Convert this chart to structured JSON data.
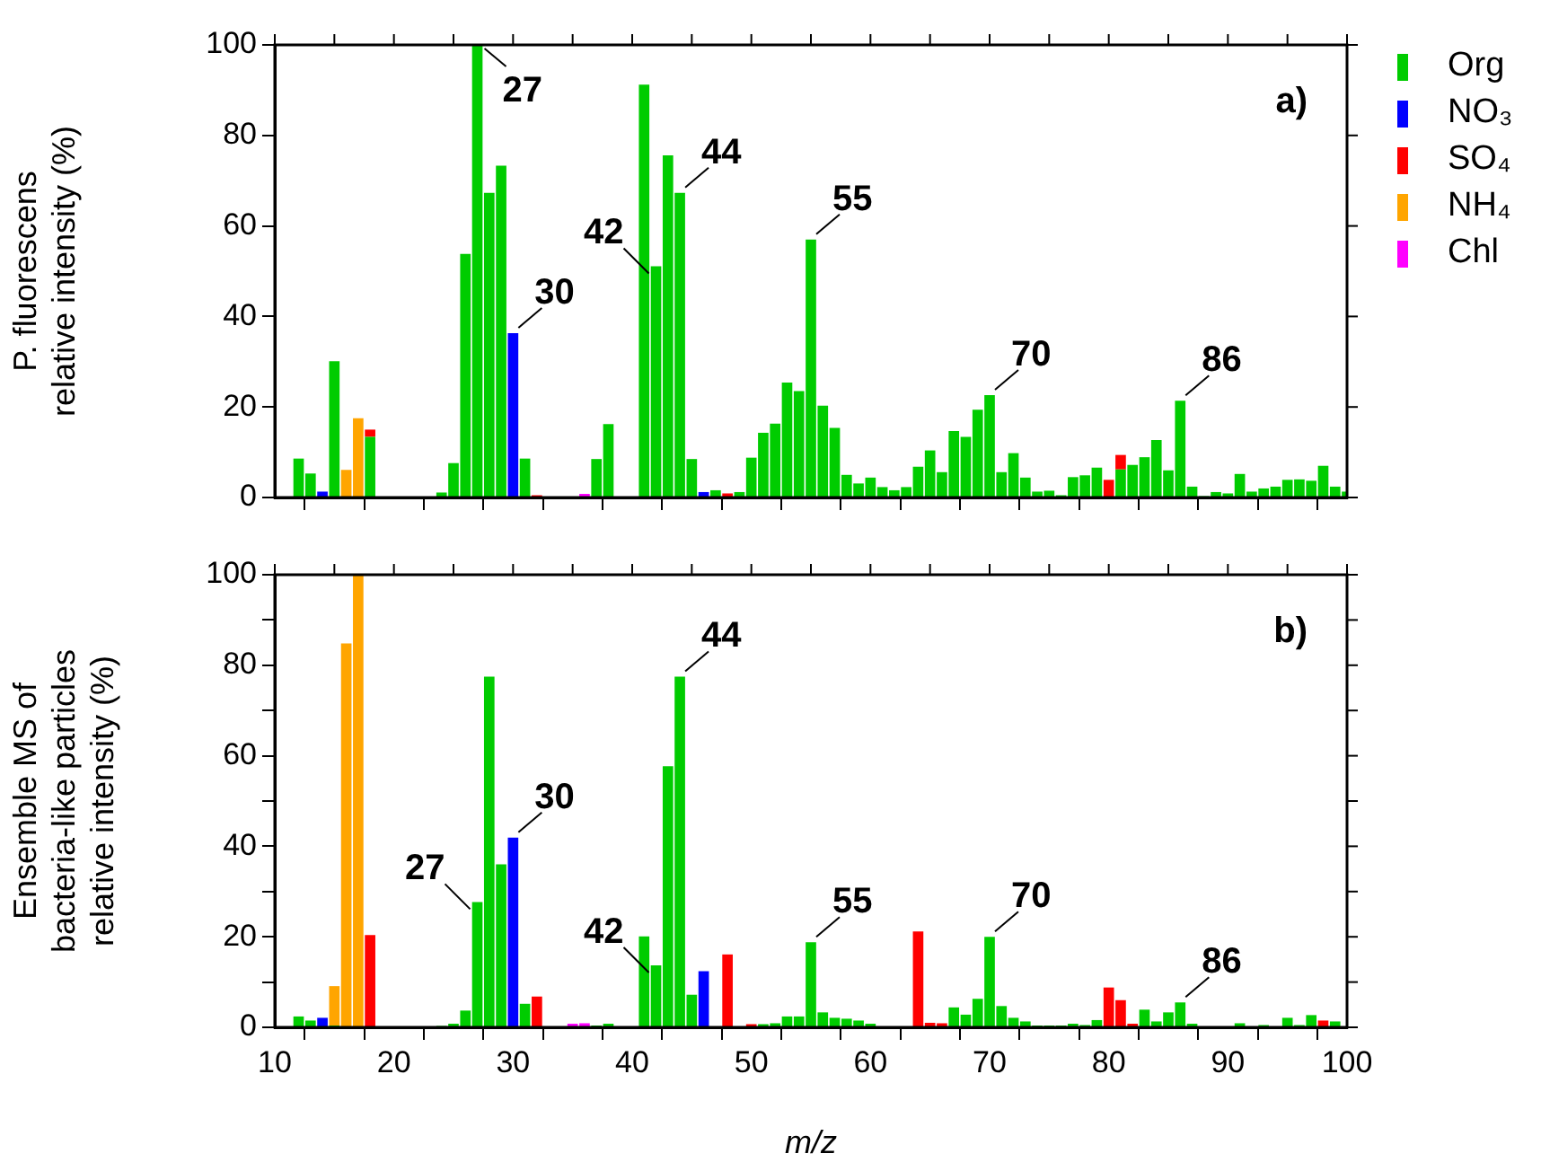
{
  "chart_data": [
    {
      "type": "bar",
      "stacked": true,
      "ylabel": "P. fluorescens\nrelative intensity (%)",
      "xlim": [
        10,
        100
      ],
      "xticks": [
        10,
        {
          "value": 15,
          "label": null
        },
        20,
        {
          "value": 25,
          "label": null
        },
        30,
        {
          "value": 35,
          "label": null
        },
        40,
        {
          "value": 45,
          "label": null
        },
        50,
        {
          "value": 55,
          "label": null
        },
        60,
        {
          "value": 65,
          "label": null
        },
        70,
        {
          "value": 75,
          "label": null
        },
        80,
        {
          "value": 85,
          "label": null
        },
        90,
        {
          "value": 95,
          "label": null
        },
        100
      ],
      "ylim": [
        0,
        100
      ],
      "yticks": [
        0,
        20,
        40,
        60,
        80,
        100
      ],
      "tick_labels": "y",
      "legend": "right",
      "grid": false,
      "x": [
        12,
        13,
        14,
        15,
        16,
        17,
        18,
        19,
        20,
        21,
        22,
        23,
        24,
        25,
        26,
        27,
        28,
        29,
        30,
        31,
        32,
        33,
        34,
        35,
        36,
        37,
        38,
        39,
        40,
        41,
        42,
        43,
        44,
        45,
        46,
        47,
        48,
        49,
        50,
        51,
        52,
        53,
        54,
        55,
        56,
        57,
        58,
        59,
        60,
        61,
        62,
        63,
        64,
        65,
        66,
        67,
        68,
        69,
        70,
        71,
        72,
        73,
        74,
        75,
        76,
        77,
        78,
        79,
        80,
        81,
        82,
        83,
        84,
        85,
        86,
        87,
        88,
        89,
        90,
        91,
        92,
        93,
        94,
        95,
        96,
        97,
        98,
        99,
        100
      ],
      "series": [
        {
          "name": "Org",
          "color": "#00cc00",
          "values": [
            8.6,
            5.3,
            null,
            30.1,
            null,
            null,
            13.4,
            null,
            null,
            null,
            null,
            null,
            1.1,
            7.6,
            53.8,
            100,
            67.3,
            73.3,
            null,
            8.6,
            null,
            null,
            null,
            null,
            null,
            8.5,
            16.2,
            null,
            null,
            91.2,
            51.1,
            75.6,
            67.3,
            8.5,
            null,
            1.6,
            null,
            1.2,
            8.8,
            14.3,
            16.3,
            25.4,
            23.5,
            57,
            20.3,
            15.4,
            5.0,
            3.1,
            4.4,
            2.3,
            1.6,
            2.3,
            6.8,
            10.4,
            5.6,
            14.7,
            13.4,
            19.4,
            22.6,
            5.6,
            9.8,
            4.4,
            1.3,
            1.5,
            0.5,
            4.5,
            4.9,
            6.6,
            null,
            6.2,
            7.2,
            8.9,
            12.7,
            6.0,
            21.4,
            2.4,
            0.3,
            1.2,
            0.9,
            5.2,
            1.3,
            2.0,
            2.4,
            3.9,
            4.0,
            3.7,
            7.0,
            2.4,
            1.3
          ]
        },
        {
          "name": "NO₃",
          "color": "#0000ff",
          "values": [
            null,
            null,
            1.3,
            null,
            null,
            null,
            null,
            null,
            null,
            null,
            null,
            null,
            null,
            null,
            null,
            null,
            null,
            null,
            36.3,
            null,
            null,
            null,
            null,
            null,
            null,
            null,
            null,
            null,
            null,
            null,
            null,
            null,
            null,
            null,
            1.2,
            null,
            null,
            null,
            null,
            null,
            null,
            null,
            null,
            null,
            null,
            null,
            null,
            null,
            null,
            null,
            null,
            null,
            null,
            null,
            null,
            null,
            null,
            null,
            null,
            null,
            null,
            null,
            null,
            null,
            null,
            null,
            null,
            null,
            null,
            null,
            null,
            null,
            null,
            null,
            null,
            null,
            null,
            null,
            null,
            null,
            null,
            null,
            null,
            null,
            null,
            null,
            null,
            null,
            null
          ]
        },
        {
          "name": "SO₄",
          "color": "#ff0000",
          "values": [
            null,
            null,
            null,
            null,
            null,
            null,
            1.6,
            null,
            null,
            null,
            null,
            null,
            null,
            null,
            null,
            null,
            null,
            null,
            null,
            null,
            0.5,
            null,
            null,
            null,
            null,
            null,
            null,
            null,
            null,
            null,
            null,
            null,
            null,
            null,
            null,
            null,
            0.9,
            null,
            null,
            null,
            null,
            null,
            null,
            null,
            null,
            null,
            null,
            null,
            null,
            null,
            null,
            null,
            null,
            null,
            null,
            null,
            null,
            null,
            null,
            null,
            null,
            null,
            null,
            null,
            null,
            null,
            null,
            null,
            3.9,
            3.2,
            null,
            null,
            null,
            null,
            null,
            null,
            null,
            null,
            null,
            null,
            null,
            null,
            null,
            null,
            null,
            null,
            null,
            null,
            null
          ]
        },
        {
          "name": "NH₄",
          "color": "#ffa500",
          "values": [
            null,
            null,
            null,
            null,
            6.1,
            17.5,
            null,
            null,
            null,
            null,
            null,
            null,
            null,
            null,
            null,
            null,
            null,
            null,
            null,
            null,
            null,
            null,
            null,
            null,
            null,
            null,
            null,
            null,
            null,
            null,
            null,
            null,
            null,
            null,
            null,
            null,
            null,
            null,
            null,
            null,
            null,
            null,
            null,
            null,
            null,
            null,
            null,
            null,
            null,
            null,
            null,
            null,
            null,
            null,
            null,
            null,
            null,
            null,
            null,
            null,
            null,
            null,
            null,
            null,
            null,
            null,
            null,
            null,
            null,
            null,
            null,
            null,
            null,
            null,
            null,
            null,
            null,
            null,
            null,
            null,
            null,
            null,
            null,
            null,
            null,
            null,
            null,
            null,
            null
          ]
        },
        {
          "name": "Chl",
          "color": "#ff00ff",
          "values": [
            null,
            null,
            null,
            null,
            null,
            null,
            null,
            null,
            null,
            null,
            null,
            null,
            null,
            null,
            null,
            null,
            null,
            null,
            null,
            null,
            null,
            null,
            null,
            null,
            0.8,
            null,
            null,
            null,
            null,
            null,
            null,
            null,
            null,
            null,
            null,
            null,
            null,
            null,
            null,
            null,
            null,
            null,
            null,
            null,
            null,
            null,
            null,
            null,
            null,
            null,
            null,
            null,
            null,
            null,
            null,
            null,
            null,
            null,
            null,
            null,
            null,
            null,
            null,
            null,
            null,
            null,
            null,
            null,
            null,
            null,
            null,
            null,
            null,
            null,
            null,
            null,
            null,
            null,
            null,
            null,
            null,
            null,
            null,
            null,
            null,
            null,
            null,
            null,
            null
          ]
        }
      ],
      "annotations": [
        "a)",
        {
          "text": "27",
          "x": 27,
          "y": 100
        },
        {
          "text": "30",
          "x": 30,
          "y": 36.3
        },
        {
          "text": "42",
          "x": 42,
          "y": 51.1
        },
        {
          "text": "44",
          "x": 44,
          "y": 67.3
        },
        {
          "text": "55",
          "x": 55,
          "y": 57
        },
        {
          "text": "70",
          "x": 70,
          "y": 22.6
        },
        {
          "text": "86",
          "x": 86,
          "y": 21.4
        }
      ]
    },
    {
      "type": "bar",
      "stacked": true,
      "xlabel": "m/z",
      "ylabel": "Ensemble MS of\nbacteria-like particles\nrelative intensity (%)",
      "xlim": [
        10,
        100
      ],
      "xticks": [
        10,
        {
          "value": 15,
          "label": null
        },
        20,
        {
          "value": 25,
          "label": null
        },
        30,
        {
          "value": 35,
          "label": null
        },
        40,
        {
          "value": 45,
          "label": null
        },
        50,
        {
          "value": 55,
          "label": null
        },
        60,
        {
          "value": 65,
          "label": null
        },
        70,
        {
          "value": 75,
          "label": null
        },
        80,
        {
          "value": 85,
          "label": null
        },
        90,
        {
          "value": 95,
          "label": null
        },
        100
      ],
      "ylim": [
        0,
        100
      ],
      "yticks": [
        0,
        {
          "value": 10,
          "label": null
        },
        20,
        {
          "value": 30,
          "label": null
        },
        40,
        {
          "value": 50,
          "label": null
        },
        60,
        {
          "value": 70,
          "label": null
        },
        80,
        {
          "value": 90,
          "label": null
        },
        100
      ],
      "grid": false,
      "x": [
        12,
        13,
        14,
        15,
        16,
        17,
        18,
        19,
        20,
        21,
        22,
        23,
        24,
        25,
        26,
        27,
        28,
        29,
        30,
        31,
        32,
        33,
        34,
        35,
        36,
        37,
        38,
        39,
        40,
        41,
        42,
        43,
        44,
        45,
        46,
        47,
        48,
        49,
        50,
        51,
        52,
        53,
        54,
        55,
        56,
        57,
        58,
        59,
        60,
        61,
        62,
        63,
        64,
        65,
        66,
        67,
        68,
        69,
        70,
        71,
        72,
        73,
        74,
        75,
        76,
        77,
        78,
        79,
        80,
        81,
        82,
        83,
        84,
        85,
        86,
        87,
        88,
        89,
        90,
        91,
        92,
        93,
        94,
        95,
        96,
        97,
        98,
        99
      ],
      "series": [
        {
          "color": "#00cc00",
          "values": [
            2.4,
            1.5,
            null,
            0.4,
            null,
            null,
            null,
            null,
            null,
            null,
            null,
            null,
            0.3,
            0.8,
            3.7,
            27.7,
            77.5,
            36,
            null,
            5.2,
            null,
            null,
            null,
            null,
            null,
            0.4,
            0.8,
            null,
            null,
            20.1,
            13.7,
            57.7,
            77.5,
            7.2,
            null,
            null,
            null,
            null,
            null,
            0.7,
            0.9,
            2.4,
            2.4,
            18.8,
            3.3,
            2.1,
            1.9,
            1.5,
            0.8,
            null,
            null,
            null,
            null,
            null,
            null,
            4.4,
            2.8,
            6.3,
            20,
            4.7,
            2.1,
            1.3,
            0.4,
            0.4,
            0.4,
            0.8,
            0.5,
            1.6,
            null,
            null,
            null,
            3.9,
            1.3,
            3.3,
            5.5,
            0.8,
            null,
            null,
            null,
            0.9,
            null,
            0.5,
            null,
            2.1,
            0.5,
            2.7,
            null,
            1.3
          ]
        },
        {
          "color": "#0000ff",
          "values": [
            null,
            null,
            2.1,
            null,
            null,
            null,
            null,
            null,
            null,
            null,
            null,
            null,
            null,
            null,
            null,
            null,
            null,
            null,
            41.9,
            null,
            null,
            null,
            null,
            null,
            null,
            null,
            null,
            null,
            null,
            null,
            null,
            null,
            null,
            null,
            12.4,
            null,
            null,
            null,
            null,
            null,
            null,
            null,
            null,
            null,
            null,
            null,
            null,
            null,
            null,
            null,
            null,
            null,
            null,
            null,
            null,
            null,
            null,
            null,
            null,
            null,
            null,
            null,
            null,
            null,
            null,
            null,
            null,
            null,
            null,
            null,
            null,
            null,
            null,
            null,
            null,
            null,
            null,
            null,
            null,
            null,
            null,
            null,
            null,
            null,
            null,
            null,
            null,
            null
          ]
        },
        {
          "color": "#ff0000",
          "values": [
            null,
            null,
            null,
            null,
            null,
            null,
            20.4,
            null,
            null,
            null,
            null,
            null,
            null,
            null,
            null,
            null,
            null,
            null,
            null,
            null,
            6.8,
            null,
            null,
            null,
            null,
            null,
            null,
            null,
            null,
            null,
            null,
            null,
            null,
            null,
            null,
            null,
            16.1,
            null,
            0.7,
            null,
            null,
            null,
            null,
            null,
            null,
            null,
            null,
            null,
            null,
            null,
            null,
            null,
            21.2,
            1.0,
            0.9,
            null,
            null,
            null,
            null,
            null,
            null,
            null,
            null,
            null,
            null,
            null,
            null,
            null,
            8.8,
            6.0,
            0.8,
            null,
            null,
            null,
            null,
            null,
            null,
            null,
            null,
            null,
            null,
            null,
            null,
            null,
            null,
            null,
            1.5,
            null
          ]
        },
        {
          "color": "#ffa500",
          "values": [
            null,
            null,
            null,
            8.7,
            84.8,
            100,
            null,
            null,
            null,
            null,
            null,
            null,
            null,
            null,
            null,
            null,
            null,
            null,
            null,
            null,
            null,
            null,
            null,
            null,
            null,
            null,
            null,
            null,
            null,
            null,
            null,
            null,
            null,
            null,
            null,
            null,
            null,
            null,
            null,
            null,
            null,
            null,
            null,
            null,
            null,
            null,
            null,
            null,
            null,
            null,
            null,
            null,
            null,
            null,
            null,
            null,
            null,
            null,
            null,
            null,
            null,
            null,
            null,
            null,
            null,
            null,
            null,
            null,
            null,
            null,
            null,
            null,
            null,
            null,
            null,
            null,
            null,
            null,
            null,
            null,
            null,
            null,
            null,
            null,
            null,
            null,
            null,
            null
          ]
        },
        {
          "color": "#ff00ff",
          "values": [
            null,
            null,
            null,
            null,
            null,
            null,
            null,
            null,
            null,
            null,
            null,
            null,
            null,
            null,
            null,
            null,
            null,
            null,
            null,
            null,
            null,
            null,
            null,
            0.8,
            0.9,
            null,
            null,
            null,
            null,
            null,
            null,
            null,
            null,
            null,
            null,
            null,
            null,
            null,
            null,
            null,
            null,
            null,
            null,
            null,
            null,
            null,
            null,
            null,
            null,
            null,
            null,
            null,
            null,
            null,
            null,
            null,
            null,
            null,
            null,
            null,
            null,
            null,
            null,
            null,
            null,
            null,
            null,
            null,
            null,
            null,
            null,
            null,
            null,
            null,
            null,
            null,
            null,
            null,
            null,
            null,
            null,
            null,
            null,
            null,
            null,
            null,
            null,
            null
          ]
        }
      ],
      "annotations": [
        "b)",
        {
          "text": "27",
          "x": 27,
          "y": 27.7
        },
        {
          "text": "30",
          "x": 30,
          "y": 41.9
        },
        {
          "text": "42",
          "x": 42,
          "y": 13.7
        },
        {
          "text": "44",
          "x": 44,
          "y": 77.5
        },
        {
          "text": "55",
          "x": 55,
          "y": 18.8
        },
        {
          "text": "70",
          "x": 70,
          "y": 20
        },
        {
          "text": "86",
          "x": 86,
          "y": 5.5
        }
      ]
    }
  ]
}
